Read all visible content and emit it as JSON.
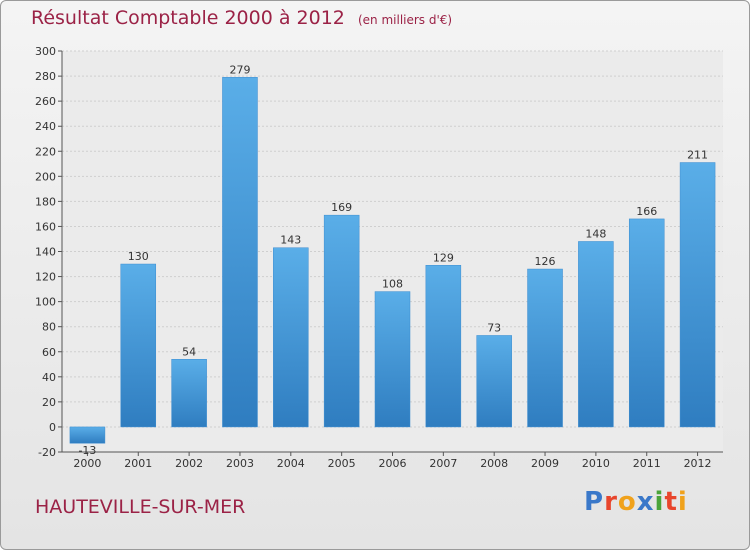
{
  "header": {
    "title": "Résultat Comptable 2000 à 2012",
    "subtitle": "(en milliers d'€)"
  },
  "footer": {
    "location": "HAUTEVILLE-SUR-MER",
    "brand": "Proxiti",
    "brand_colors": [
      "#3a78c9",
      "#e8452c",
      "#f0a21c",
      "#3a78c9",
      "#4aa43a",
      "#e8452c",
      "#f0a21c"
    ]
  },
  "chart_data": {
    "type": "bar",
    "title": "Résultat Comptable 2000 à 2012",
    "subtitle": "(en milliers d'€)",
    "xlabel": "",
    "ylabel": "",
    "categories": [
      "2000",
      "2001",
      "2002",
      "2003",
      "2004",
      "2005",
      "2006",
      "2007",
      "2008",
      "2009",
      "2010",
      "2011",
      "2012"
    ],
    "values": [
      -13,
      130,
      54,
      279,
      143,
      169,
      108,
      129,
      73,
      126,
      148,
      166,
      211
    ],
    "data_labels": [
      "-13",
      "130",
      "54",
      "279",
      "143",
      "169",
      "108",
      "129",
      "73",
      "126",
      "148",
      "166",
      "211"
    ],
    "ylim": [
      -20,
      300
    ],
    "yticks": [
      -20,
      0,
      20,
      40,
      60,
      80,
      100,
      120,
      140,
      160,
      180,
      200,
      220,
      240,
      260,
      280,
      300
    ],
    "grid": true,
    "colors": {
      "bar_top": "#5aaee8",
      "bar_bottom": "#2f7dc0",
      "text": "#333333",
      "title": "#9b2246"
    }
  }
}
